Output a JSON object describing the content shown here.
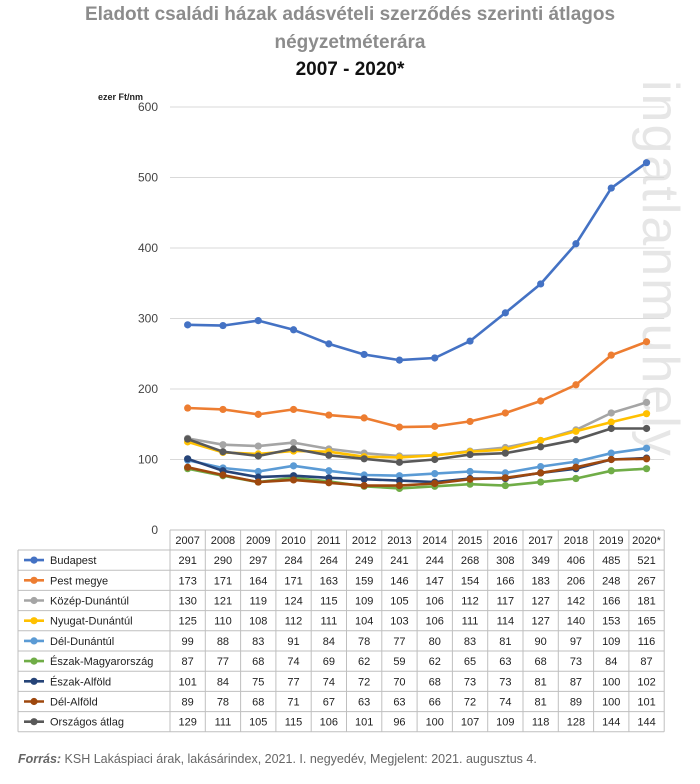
{
  "chart_data": {
    "type": "line",
    "title": "Eladott családi házak adásvételi szerződés szerinti átlagos négyzetméterára",
    "title_line1": "Eladott családi házak adásvételi szerződés szerinti átlagos",
    "title_line2": "négyzetméterára",
    "subtitle": "2007 - 2020*",
    "ylabel": "ezer Ft/nm",
    "ylim": [
      0,
      600
    ],
    "yticks": [
      "0",
      "100",
      "200",
      "300",
      "400",
      "500",
      "600"
    ],
    "yticks_values": [
      0,
      100,
      200,
      300,
      400,
      500,
      600
    ],
    "categories": [
      "2007",
      "2008",
      "2009",
      "2010",
      "2011",
      "2012",
      "2013",
      "2014",
      "2015",
      "2016",
      "2017",
      "2018",
      "2019",
      "2020*"
    ],
    "grid": true,
    "legend": "data-table-below",
    "series": [
      {
        "name": "Budapest",
        "color": "#4472C4",
        "values": [
          291,
          290,
          297,
          284,
          264,
          249,
          241,
          244,
          268,
          308,
          349,
          406,
          485,
          521
        ]
      },
      {
        "name": "Pest megye",
        "color": "#ED7D31",
        "values": [
          173,
          171,
          164,
          171,
          163,
          159,
          146,
          147,
          154,
          166,
          183,
          206,
          248,
          267
        ]
      },
      {
        "name": "Közép-Dunántúl",
        "color": "#A5A5A5",
        "values": [
          130,
          121,
          119,
          124,
          115,
          109,
          105,
          106,
          112,
          117,
          127,
          142,
          166,
          181
        ]
      },
      {
        "name": "Nyugat-Dunántúl",
        "color": "#FFC000",
        "values": [
          125,
          110,
          108,
          112,
          111,
          104,
          103,
          106,
          111,
          114,
          127,
          140,
          153,
          165
        ]
      },
      {
        "name": "Dél-Dunántúl",
        "color": "#5B9BD5",
        "values": [
          99,
          88,
          83,
          91,
          84,
          78,
          77,
          80,
          83,
          81,
          90,
          97,
          109,
          116
        ]
      },
      {
        "name": "Észak-Magyarország",
        "color": "#70AD47",
        "values": [
          87,
          77,
          68,
          74,
          69,
          62,
          59,
          62,
          65,
          63,
          68,
          73,
          84,
          87
        ]
      },
      {
        "name": "Észak-Alföld",
        "color": "#264478",
        "values": [
          101,
          84,
          75,
          77,
          74,
          72,
          70,
          68,
          73,
          73,
          81,
          87,
          100,
          102
        ]
      },
      {
        "name": "Dél-Alföld",
        "color": "#9E480E",
        "values": [
          89,
          78,
          68,
          71,
          67,
          63,
          63,
          66,
          72,
          74,
          81,
          89,
          100,
          101
        ]
      },
      {
        "name": "Országos átlag",
        "color": "#595959",
        "values": [
          129,
          111,
          105,
          115,
          106,
          101,
          96,
          100,
          107,
          109,
          118,
          128,
          144,
          144
        ]
      }
    ]
  },
  "watermark": "ingatlanmuhely",
  "source": {
    "label": "Forrás:",
    "text": " KSH Lakáspiaci árak, lakásárindex, 2021. I. negyedév, Megjelent: 2021. augusztus 4."
  }
}
